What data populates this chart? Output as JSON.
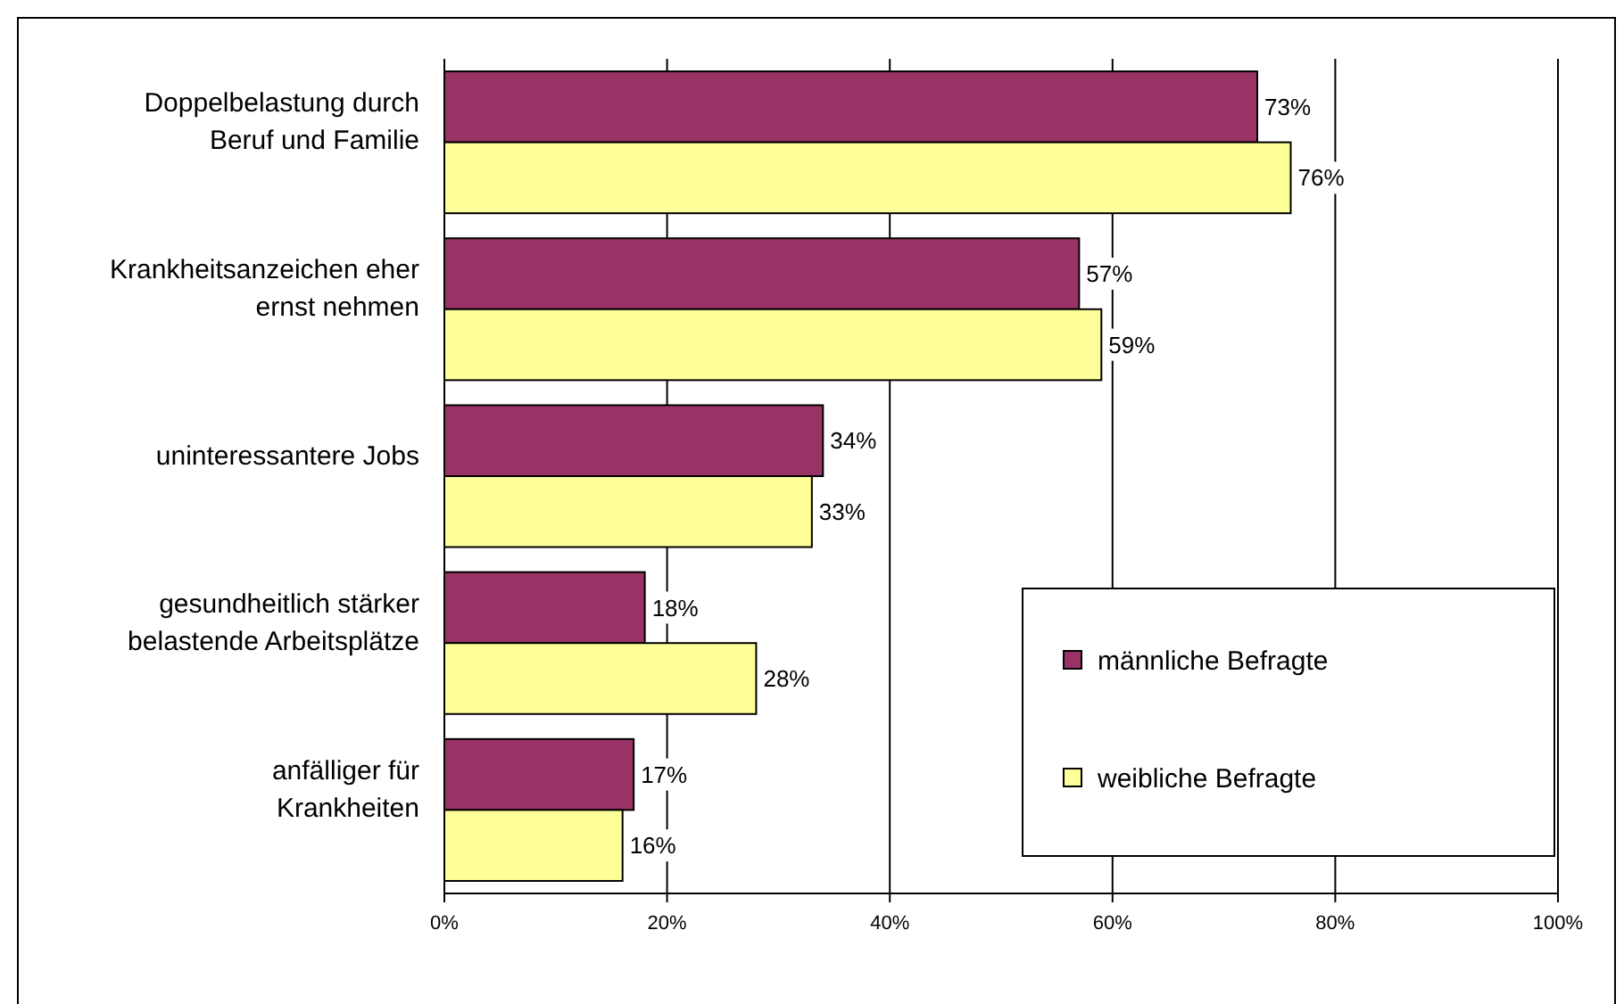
{
  "chart_data": {
    "type": "bar",
    "orientation": "horizontal",
    "categories": [
      "Doppelbelastung durch Beruf und Familie",
      "Krankheitsanzeichen eher ernst nehmen",
      "uninteressantere Jobs",
      "gesundheitlich stärker belastende Arbeitsplätze",
      "anfälliger für Krankheiten"
    ],
    "series": [
      {
        "name": "männliche Befragte",
        "color": "#993366",
        "values": [
          73,
          57,
          34,
          18,
          17
        ],
        "value_labels": [
          "73%",
          "57%",
          "34%",
          "18%",
          "17%"
        ]
      },
      {
        "name": "weibliche Befragte",
        "color": "#ffff99",
        "values": [
          76,
          59,
          33,
          28,
          16
        ],
        "value_labels": [
          "76%",
          "59%",
          "33%",
          "28%",
          "16%"
        ]
      }
    ],
    "xlim": [
      0,
      100
    ],
    "xticks": [
      {
        "value": 0,
        "label": "0%"
      },
      {
        "value": 20,
        "label": "20%"
      },
      {
        "value": 40,
        "label": "40%"
      },
      {
        "value": 60,
        "label": "60%"
      },
      {
        "value": 80,
        "label": "80%"
      },
      {
        "value": 100,
        "label": "100%"
      }
    ],
    "grid": "x",
    "legend": "bottom right"
  }
}
